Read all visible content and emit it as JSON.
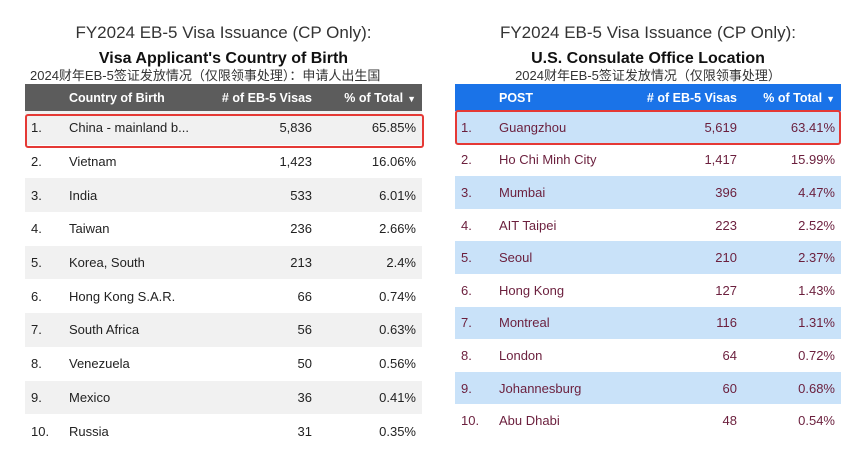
{
  "left": {
    "title": "FY2024 EB-5 Visa Issuance (CP Only):",
    "subtitle": "Visa Applicant's Country of Birth",
    "chinese_caption": "2024财年EB-5签证发放情况（仅限领事处理）：申请人出生国",
    "columns": [
      "Country of Birth",
      "# of EB-5 Visas",
      "% of Total"
    ],
    "sort_indicator": "▼",
    "rows": [
      {
        "rank": "1.",
        "name": "China - mainland b...",
        "visas": "5,836",
        "pct": "65.85%"
      },
      {
        "rank": "2.",
        "name": "Vietnam",
        "visas": "1,423",
        "pct": "16.06%"
      },
      {
        "rank": "3.",
        "name": "India",
        "visas": "533",
        "pct": "6.01%"
      },
      {
        "rank": "4.",
        "name": "Taiwan",
        "visas": "236",
        "pct": "2.66%"
      },
      {
        "rank": "5.",
        "name": "Korea, South",
        "visas": "213",
        "pct": "2.4%"
      },
      {
        "rank": "6.",
        "name": "Hong Kong S.A.R.",
        "visas": "66",
        "pct": "0.74%"
      },
      {
        "rank": "7.",
        "name": "South Africa",
        "visas": "56",
        "pct": "0.63%"
      },
      {
        "rank": "8.",
        "name": "Venezuela",
        "visas": "50",
        "pct": "0.56%"
      },
      {
        "rank": "9.",
        "name": "Mexico",
        "visas": "36",
        "pct": "0.41%"
      },
      {
        "rank": "10.",
        "name": "Russia",
        "visas": "31",
        "pct": "0.35%"
      }
    ]
  },
  "right": {
    "title": "FY2024 EB-5 Visa Issuance (CP Only):",
    "subtitle": "U.S. Consulate Office Location",
    "chinese_caption": "2024财年EB-5签证发放情况（仅限领事处理）",
    "columns": [
      "POST",
      "# of EB-5 Visas",
      "% of Total"
    ],
    "sort_indicator": "▼",
    "rows": [
      {
        "rank": "1.",
        "name": "Guangzhou",
        "visas": "5,619",
        "pct": "63.41%"
      },
      {
        "rank": "2.",
        "name": "Ho Chi Minh City",
        "visas": "1,417",
        "pct": "15.99%"
      },
      {
        "rank": "3.",
        "name": "Mumbai",
        "visas": "396",
        "pct": "4.47%"
      },
      {
        "rank": "4.",
        "name": "AIT Taipei",
        "visas": "223",
        "pct": "2.52%"
      },
      {
        "rank": "5.",
        "name": "Seoul",
        "visas": "210",
        "pct": "2.37%"
      },
      {
        "rank": "6.",
        "name": "Hong Kong",
        "visas": "127",
        "pct": "1.43%"
      },
      {
        "rank": "7.",
        "name": "Montreal",
        "visas": "116",
        "pct": "1.31%"
      },
      {
        "rank": "8.",
        "name": "London",
        "visas": "64",
        "pct": "0.72%"
      },
      {
        "rank": "9.",
        "name": "Johannesburg",
        "visas": "60",
        "pct": "0.68%"
      },
      {
        "rank": "10.",
        "name": "Abu Dhabi",
        "visas": "48",
        "pct": "0.54%"
      }
    ]
  },
  "colors": {
    "left_header": "#5c5c5c",
    "right_header": "#1a73e8",
    "right_stripe": "#c9e2f9",
    "highlight_border": "#e53935",
    "right_text": "#6b1f3d"
  }
}
